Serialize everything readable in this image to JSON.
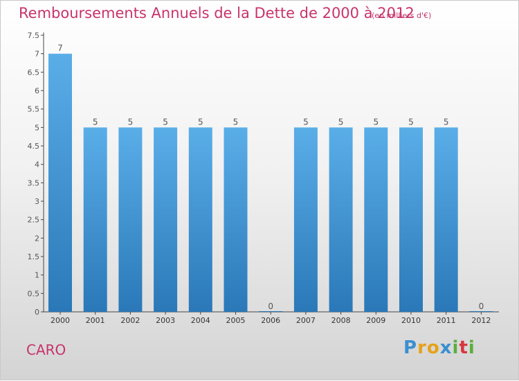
{
  "chart_data": {
    "type": "bar",
    "title": "Remboursements Annuels de la Dette de 2000 à 2012",
    "subtitle": "(en milliers d'€)",
    "categories": [
      "2000",
      "2001",
      "2002",
      "2003",
      "2004",
      "2005",
      "2006",
      "2007",
      "2008",
      "2009",
      "2010",
      "2011",
      "2012"
    ],
    "values": [
      7,
      5,
      5,
      5,
      5,
      5,
      0,
      5,
      5,
      5,
      5,
      5,
      0
    ],
    "value_labels": [
      "7",
      "5",
      "5",
      "5",
      "5",
      "5",
      "0",
      "5",
      "5",
      "5",
      "5",
      "5",
      "0"
    ],
    "y_ticks": [
      "0",
      "0.5",
      "1",
      "1.5",
      "2",
      "2.5",
      "3",
      "3.5",
      "4",
      "4.5",
      "5",
      "5.5",
      "6",
      "6.5",
      "7",
      "7.5"
    ],
    "ylim": [
      0,
      7.5
    ],
    "grid": false,
    "colors": {
      "bar_top": "#5aaee8",
      "bar_bottom": "#2a78b8",
      "title": "#c8336b",
      "axis_text": "#555555"
    }
  },
  "footer": {
    "label": "CARO"
  },
  "brand": {
    "letters": [
      "P",
      "r",
      "o",
      "x",
      "i",
      "t",
      "i"
    ],
    "colors": [
      "#3a8fd0",
      "#e6a21a",
      "#e6a21a",
      "#3a8fd0",
      "#5aaf3c",
      "#d9363e",
      "#5aaf3c"
    ]
  }
}
